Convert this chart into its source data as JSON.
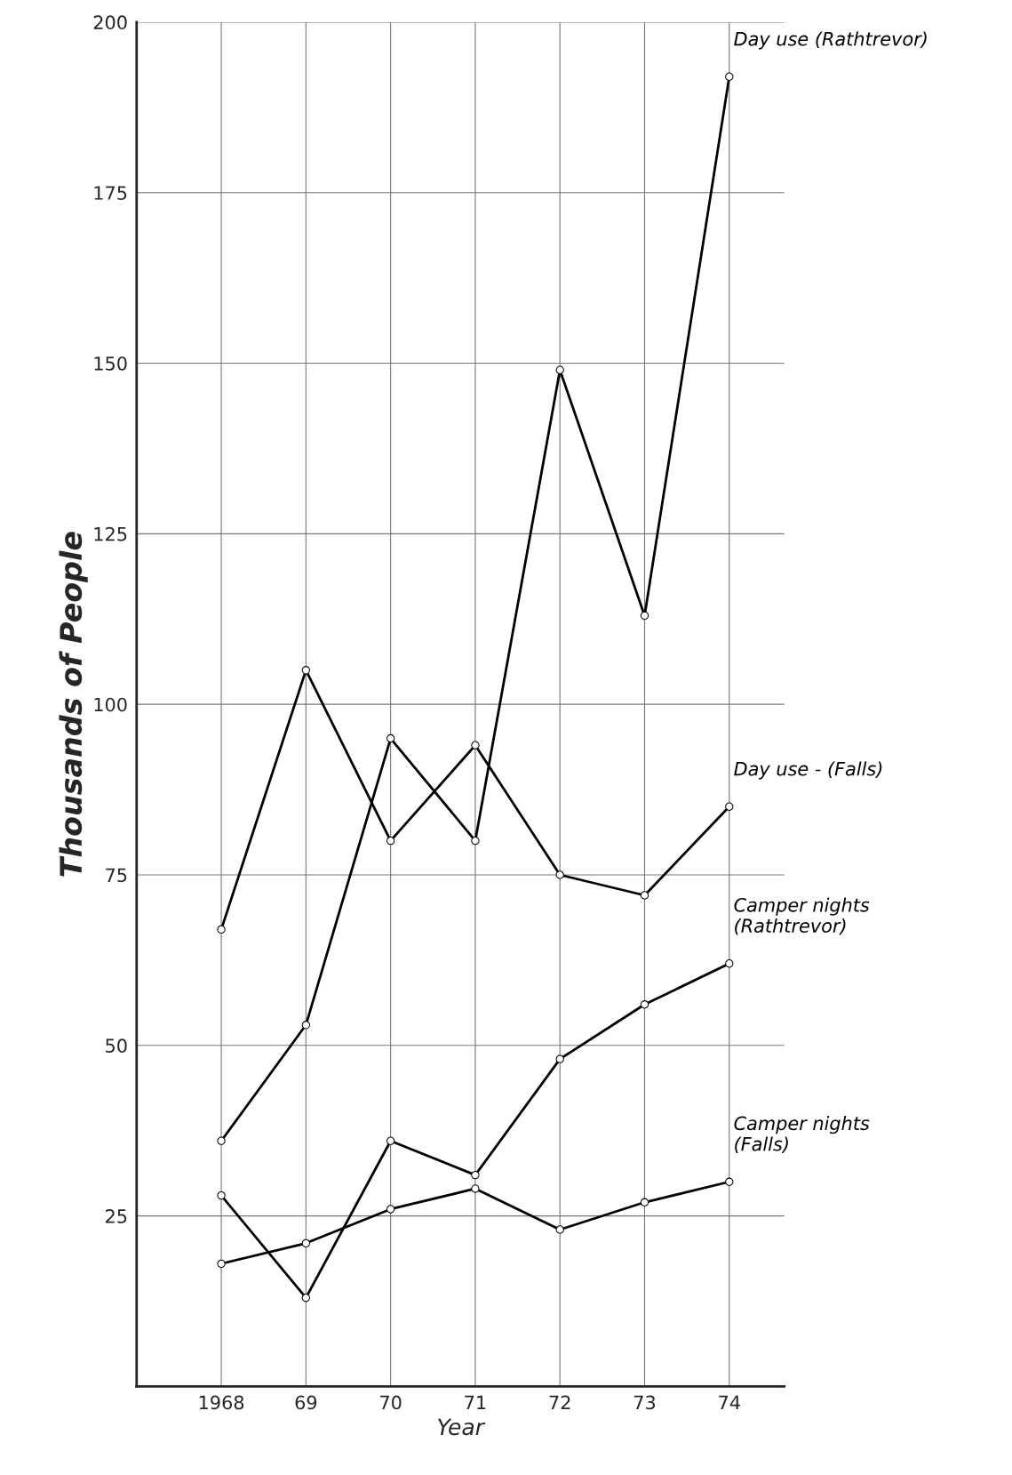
{
  "chart_data": {
    "type": "line",
    "xlabel": "Year",
    "ylabel": "Thousands of People",
    "categories": [
      "1968",
      "69",
      "70",
      "71",
      "72",
      "73",
      "74"
    ],
    "series": [
      {
        "name": "Day use (Rathtrevor)",
        "color": "#000000",
        "values": [
          36,
          53,
          95,
          80,
          149,
          113,
          192
        ]
      },
      {
        "name": "Day use - (Falls)",
        "color": "#000000",
        "values": [
          67,
          105,
          80,
          94,
          75,
          72,
          85
        ]
      },
      {
        "name": "Camper nights\n(Rathtrevor)",
        "color": "#000000",
        "values": [
          28,
          13,
          36,
          31,
          48,
          56,
          62
        ]
      },
      {
        "name": "Camper nights\n(Falls)",
        "color": "#000000",
        "values": [
          18,
          21,
          26,
          29,
          23,
          27,
          30
        ]
      }
    ],
    "ylim": [
      0,
      200
    ],
    "yticks": [
      25,
      50,
      75,
      100,
      125,
      150,
      175,
      200
    ],
    "grid": true,
    "marker": "circle",
    "line_style": "solid",
    "legend": false
  }
}
